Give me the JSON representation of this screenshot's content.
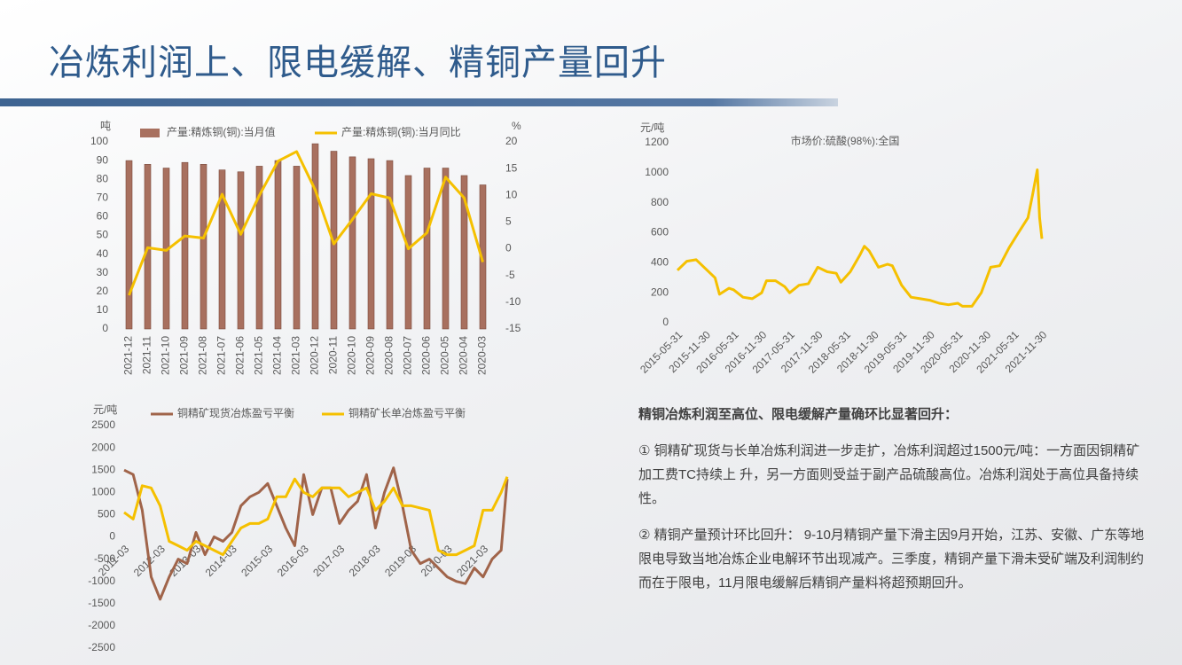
{
  "title": "冶炼利润上、限电缓解、精铜产量回升",
  "chart_data": [
    {
      "type": "combo",
      "ylabel": "吨",
      "y2label": "%",
      "categories": [
        "2021-12",
        "2021-11",
        "2021-10",
        "2021-09",
        "2021-08",
        "2021-07",
        "2021-06",
        "2021-05",
        "2021-04",
        "2021-03",
        "2020-12",
        "2020-11",
        "2020-10",
        "2020-09",
        "2020-08",
        "2020-07",
        "2020-06",
        "2020-05",
        "2020-04",
        "2020-03"
      ],
      "series": [
        {
          "name": "产量:精炼铜(铜):当月值",
          "type": "bar",
          "color": "#a8705f",
          "values": [
            90,
            88,
            86,
            89,
            88,
            85,
            84,
            87,
            90,
            87,
            99,
            95,
            92,
            91,
            90,
            82,
            86,
            86,
            82,
            77
          ]
        },
        {
          "name": "产量:精炼铜(铜):当月同比",
          "type": "line",
          "axis": "y2",
          "color": "#f5c000",
          "values": [
            -8.7,
            0.2,
            -0.3,
            2.4,
            2,
            10.2,
            2.7,
            10,
            16.4,
            18.2,
            11,
            0.9,
            5.5,
            10.3,
            9.5,
            0,
            3,
            13.4,
            9.5,
            -2.5
          ]
        }
      ],
      "ylim": [
        0,
        100
      ],
      "yticks": [
        0,
        10,
        20,
        30,
        40,
        50,
        60,
        70,
        80,
        90,
        100
      ],
      "y2lim": [
        -15,
        20
      ],
      "y2ticks": [
        -15,
        -10,
        -5,
        0,
        5,
        10,
        15,
        20
      ],
      "grid": false
    },
    {
      "type": "line",
      "ylabel": "元/吨",
      "x": [
        "2015-05-31",
        "2015-07-31",
        "2015-09-30",
        "2015-11-30",
        "2016-01-31",
        "2016-02-29",
        "2016-04-30",
        "2016-05-31",
        "2016-07-31",
        "2016-09-30",
        "2016-11-30",
        "2016-12-31",
        "2017-02-28",
        "2017-04-30",
        "2017-05-31",
        "2017-07-31",
        "2017-09-30",
        "2017-11-30",
        "2018-01-31",
        "2018-03-31",
        "2018-04-30",
        "2018-06-30",
        "2018-08-31",
        "2018-09-30",
        "2018-10-31",
        "2018-12-31",
        "2019-02-28",
        "2019-03-31",
        "2019-05-31",
        "2019-07-31",
        "2019-09-30",
        "2019-11-30",
        "2020-01-31",
        "2020-03-31",
        "2020-05-31",
        "2020-06-30",
        "2020-08-31",
        "2020-10-31",
        "2020-12-31",
        "2021-02-28",
        "2021-04-30",
        "2021-06-30",
        "2021-08-31",
        "2021-09-30",
        "2021-10-31",
        "2021-11-15",
        "2021-11-30"
      ],
      "series": [
        {
          "name": "市场价:硫酸(98%):全国",
          "color": "#f5c000",
          "values": [
            350,
            410,
            420,
            360,
            300,
            190,
            230,
            220,
            170,
            160,
            200,
            280,
            280,
            240,
            200,
            250,
            260,
            370,
            340,
            330,
            270,
            340,
            450,
            510,
            480,
            370,
            390,
            380,
            250,
            170,
            160,
            150,
            130,
            120,
            130,
            110,
            110,
            200,
            370,
            380,
            500,
            600,
            700,
            850,
            1020,
            700,
            560
          ]
        }
      ],
      "xlim": [
        "2015-05-31",
        "2021-11-30"
      ],
      "xticks": [
        "2015-05-31",
        "2015-11-30",
        "2016-05-31",
        "2016-11-30",
        "2017-05-31",
        "2017-11-30",
        "2018-05-31",
        "2018-11-30",
        "2019-05-31",
        "2019-11-30",
        "2020-05-31",
        "2020-11-30",
        "2021-05-31",
        "2021-11-30"
      ],
      "ylim": [
        0,
        1200
      ],
      "yticks": [
        0,
        200,
        400,
        600,
        800,
        1000,
        1200
      ],
      "grid": false
    },
    {
      "type": "line",
      "ylabel": "元/吨",
      "x": [
        "2011-03",
        "2011-06",
        "2011-09",
        "2011-12",
        "2012-03",
        "2012-06",
        "2012-09",
        "2012-12",
        "2013-03",
        "2013-06",
        "2013-09",
        "2013-12",
        "2014-03",
        "2014-06",
        "2014-09",
        "2014-12",
        "2015-03",
        "2015-06",
        "2015-09",
        "2015-12",
        "2016-03",
        "2016-06",
        "2016-09",
        "2016-12",
        "2017-03",
        "2017-06",
        "2017-09",
        "2017-12",
        "2018-03",
        "2018-06",
        "2018-09",
        "2018-12",
        "2019-03",
        "2019-06",
        "2019-09",
        "2019-12",
        "2020-03",
        "2020-06",
        "2020-09",
        "2020-12",
        "2021-03",
        "2021-06",
        "2021-09",
        "2021-11"
      ],
      "series": [
        {
          "name": "铜精矿现货冶炼盈亏平衡",
          "color": "#a0644a",
          "values": [
            1500,
            1400,
            600,
            -900,
            -1400,
            -900,
            -500,
            -600,
            100,
            -400,
            0,
            -100,
            100,
            700,
            900,
            1000,
            1200,
            700,
            200,
            -200,
            1400,
            500,
            1100,
            1100,
            300,
            600,
            800,
            1400,
            200,
            1000,
            1550,
            700,
            -300,
            -600,
            -500,
            -700,
            -900,
            -1000,
            -1050,
            -700,
            -900,
            -500,
            -300,
            1300
          ]
        },
        {
          "name": "铜精矿长单冶炼盈亏平衡",
          "color": "#f5c000",
          "values": [
            550,
            400,
            1150,
            1100,
            700,
            -100,
            -200,
            -300,
            -100,
            -200,
            -300,
            -400,
            -100,
            200,
            300,
            300,
            400,
            900,
            900,
            1300,
            1000,
            900,
            1100,
            1100,
            1100,
            900,
            1000,
            1100,
            600,
            800,
            1100,
            700,
            700,
            650,
            600,
            -300,
            -400,
            -400,
            -300,
            -200,
            600,
            600,
            1000,
            1350
          ]
        }
      ],
      "xlim": [
        "2011-03",
        "2021-11"
      ],
      "xticks": [
        "2011-03",
        "2012-03",
        "2013-03",
        "2014-03",
        "2015-03",
        "2016-03",
        "2017-03",
        "2018-03",
        "2019-03",
        "2020-03",
        "2021-03"
      ],
      "ylim": [
        -2500,
        2500
      ],
      "yticks": [
        -2500,
        -2000,
        -1500,
        -1000,
        -500,
        0,
        500,
        1000,
        1500,
        2000,
        2500
      ],
      "grid": false
    }
  ],
  "text": {
    "heading": "精铜冶炼利润至高位、限电缓解产量确环比显著回升：",
    "paragraphs": [
      "① 铜精矿现货与长单冶炼利润进一步走扩，冶炼利润超过1500元/吨：一方面因铜精矿加工费TC持续上 升，另一方面则受益于副产品硫酸高位。冶炼利润处于高位具备持续性。",
      "② 精铜产量预计环比回升： 9-10月精铜产量下滑主因9月开始，江苏、安徽、广东等地限电导致当地冶炼企业电解环节出现减产。三季度，精铜产量下滑未受矿端及利润制约而在于限电，11月限电缓解后精铜产量料将超预期回升。"
    ]
  }
}
